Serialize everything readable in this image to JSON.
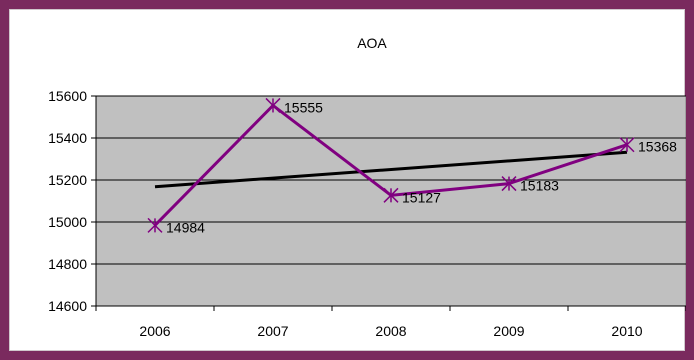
{
  "chart_data": {
    "type": "line",
    "title": "AOA",
    "categories": [
      "2006",
      "2007",
      "2008",
      "2009",
      "2010"
    ],
    "series": [
      {
        "values": [
          14984,
          15555,
          15127,
          15183,
          15368
        ],
        "color": "#800080",
        "marker": "asterisk"
      }
    ],
    "trendline": {
      "type": "linear",
      "start": 15168,
      "end": 15332,
      "color": "#000000"
    },
    "ylim": [
      14600,
      15600
    ],
    "yticks": [
      "14600",
      "14800",
      "15000",
      "15200",
      "15400",
      "15600"
    ],
    "data_labels": [
      "14984",
      "15555",
      "15127",
      "15183",
      "15368"
    ],
    "plot_background": "#c0c0c0",
    "grid": true,
    "xlabel": "",
    "ylabel": ""
  }
}
